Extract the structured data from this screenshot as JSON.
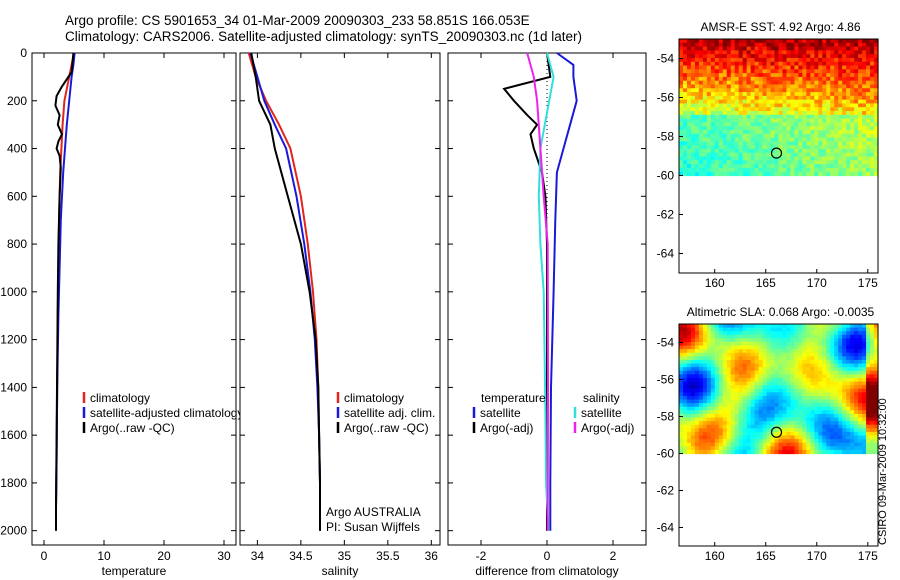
{
  "header": {
    "title_line1": "Argo profile: CS 5901653_34 01-Mar-2009 20090303_233 58.851S 166.053E",
    "title_line2": "Climatology: CARS2006. Satellite-adjusted climatology: synTS_20090303.nc (1d later)"
  },
  "signature": "CSIRO 09-Mar-2009 10:32:00",
  "colors": {
    "climatology": "#e0261c",
    "satellite": "#1a1ad6",
    "argo": "#000000",
    "salinity_satellite": "#33dddd",
    "salinity_argo": "#ee22ee"
  },
  "chart_data": [
    {
      "id": "temperature",
      "type": "line",
      "xlabel": "temperature",
      "ylabel": "",
      "xlim": [
        -2,
        32
      ],
      "ylim": [
        2060,
        0
      ],
      "xticks": [
        0,
        10,
        20,
        30
      ],
      "yticks": [
        0,
        200,
        400,
        600,
        800,
        1000,
        1200,
        1400,
        1600,
        1800,
        2000
      ],
      "legend": [
        "climatology",
        "satellite-adjusted climatology",
        "Argo(..raw -QC)"
      ],
      "series": [
        {
          "name": "climatology",
          "color": "#e0261c",
          "x": [
            5.0,
            4.6,
            4.2,
            3.4,
            3.1,
            2.9,
            2.7,
            2.5,
            2.4,
            2.3,
            2.2,
            2.1,
            2.0,
            2.0
          ],
          "y": [
            0,
            50,
            100,
            200,
            300,
            400,
            500,
            700,
            900,
            1100,
            1400,
            1700,
            1900,
            2000
          ]
        },
        {
          "name": "satellite-adjusted climatology",
          "color": "#1a1ad6",
          "x": [
            5.1,
            4.9,
            4.6,
            4.2,
            3.8,
            3.5,
            3.2,
            2.8,
            2.6,
            2.4,
            2.2,
            2.1,
            2.0,
            2.0
          ],
          "y": [
            0,
            50,
            100,
            200,
            300,
            400,
            500,
            700,
            900,
            1100,
            1400,
            1700,
            1900,
            2000
          ]
        },
        {
          "name": "Argo(..raw -QC)",
          "color": "#000000",
          "x": [
            4.9,
            4.6,
            3.0,
            2.1,
            1.9,
            2.6,
            2.3,
            3.0,
            2.4,
            2.1,
            2.6,
            2.8,
            2.6,
            2.4,
            2.3,
            2.2,
            2.1,
            2.0,
            2.0
          ],
          "y": [
            0,
            80,
            140,
            180,
            220,
            260,
            300,
            340,
            370,
            400,
            430,
            480,
            600,
            800,
            1000,
            1300,
            1600,
            1900,
            2000
          ]
        }
      ]
    },
    {
      "id": "salinity",
      "type": "line",
      "xlabel": "salinity",
      "ylabel": "",
      "xlim": [
        33.8,
        36.1
      ],
      "ylim": [
        2060,
        0
      ],
      "xticks": [
        34,
        34.5,
        35,
        35.5,
        36
      ],
      "xtick_labels": [
        "34",
        "34.5",
        "35",
        "35.5",
        "36"
      ],
      "yticks": [
        0,
        200,
        400,
        600,
        800,
        1000,
        1200,
        1400,
        1600,
        1800,
        2000
      ],
      "legend": [
        "climatology",
        "satellite adj. clim.",
        "Argo(..raw -QC)"
      ],
      "annotation": [
        "Argo AUSTRALIA",
        "PI: Susan Wijffels"
      ],
      "series": [
        {
          "name": "climatology",
          "color": "#e0261c",
          "x": [
            33.9,
            33.98,
            34.1,
            34.25,
            34.38,
            34.5,
            34.58,
            34.64,
            34.68,
            34.7,
            34.71,
            34.72,
            34.72
          ],
          "y": [
            0,
            100,
            200,
            300,
            400,
            600,
            800,
            1000,
            1200,
            1400,
            1600,
            1800,
            2000
          ]
        },
        {
          "name": "satellite adj. clim.",
          "color": "#1a1ad6",
          "x": [
            33.92,
            34.0,
            34.08,
            34.2,
            34.33,
            34.45,
            34.54,
            34.61,
            34.66,
            34.69,
            34.71,
            34.72,
            34.72
          ],
          "y": [
            0,
            100,
            200,
            300,
            400,
            600,
            800,
            1000,
            1200,
            1400,
            1600,
            1800,
            2000
          ]
        },
        {
          "name": "Argo(..raw -QC)",
          "color": "#000000",
          "x": [
            33.93,
            33.98,
            34.02,
            34.15,
            34.2,
            34.35,
            34.5,
            34.6,
            34.67,
            34.7,
            34.71,
            34.72,
            34.72
          ],
          "y": [
            0,
            100,
            200,
            300,
            400,
            600,
            800,
            1000,
            1200,
            1400,
            1600,
            1800,
            2000
          ]
        }
      ]
    },
    {
      "id": "difference",
      "type": "line",
      "xlabel": "difference from climatology",
      "ylabel": "",
      "xlim": [
        -3,
        3
      ],
      "ylim": [
        2060,
        0
      ],
      "xticks": [
        -2,
        0,
        2
      ],
      "yticks": [
        0,
        200,
        400,
        600,
        800,
        1000,
        1200,
        1400,
        1600,
        1800,
        2000
      ],
      "legend_titles": [
        "temperature",
        "salinity"
      ],
      "legend_temperature": [
        "satellite",
        "Argo(-adj)"
      ],
      "legend_salinity": [
        "satellite",
        "Argo(-adj)"
      ],
      "series": [
        {
          "name": "temperature satellite",
          "color": "#1a1ad6",
          "x": [
            0.3,
            0.8,
            0.8,
            0.9,
            0.7,
            0.5,
            0.3,
            0.25,
            0.2,
            0.12,
            0.1,
            0.1
          ],
          "y": [
            0,
            50,
            100,
            200,
            300,
            400,
            500,
            700,
            1000,
            1400,
            1800,
            2000
          ]
        },
        {
          "name": "temperature Argo(-adj)",
          "color": "#000000",
          "x": [
            0,
            0.1,
            -1.3,
            -1.0,
            -0.6,
            -0.3,
            -0.5,
            -0.4,
            -0.15,
            -0.05,
            0,
            0,
            0,
            0
          ],
          "y": [
            0,
            100,
            150,
            200,
            260,
            300,
            340,
            400,
            500,
            600,
            800,
            1200,
            1700,
            2000
          ]
        },
        {
          "name": "salinity satellite",
          "color": "#33dddd",
          "x": [
            0.0,
            0.2,
            0.0,
            -0.2,
            -0.25,
            -0.2,
            -0.1,
            -0.08,
            -0.05,
            -0.03,
            0.05
          ],
          "y": [
            0,
            100,
            250,
            400,
            600,
            800,
            1000,
            1200,
            1500,
            1800,
            2000
          ]
        },
        {
          "name": "salinity Argo(-adj)",
          "color": "#ee22ee",
          "x": [
            -0.6,
            -0.4,
            -0.3,
            -0.2,
            -0.1,
            0.02,
            0.03,
            0.02
          ],
          "y": [
            0,
            100,
            200,
            400,
            600,
            800,
            1400,
            2000
          ]
        }
      ]
    },
    {
      "id": "sst-map",
      "type": "heatmap",
      "title_label": "AMSR-E SST:",
      "title_value_sat": "4.92",
      "title_argo_label": "Argo:",
      "title_value_argo": "4.86",
      "xlim": [
        156.5,
        176
      ],
      "ylim": [
        -65,
        -53
      ],
      "xticks": [
        160,
        165,
        170,
        175
      ],
      "yticks": [
        -54,
        -56,
        -58,
        -60,
        -62,
        -64
      ],
      "data_lat_range": [
        -60,
        -53
      ],
      "float_position": [
        166.053,
        -58.851
      ]
    },
    {
      "id": "sla-map",
      "type": "heatmap",
      "title_label": "Altimetric SLA:",
      "title_value_sat": "0.068",
      "title_argo_label": "Argo:",
      "title_value_argo": "-0.0035",
      "xlim": [
        156.5,
        176
      ],
      "ylim": [
        -65,
        -53
      ],
      "xticks": [
        160,
        165,
        170,
        175
      ],
      "yticks": [
        -54,
        -56,
        -58,
        -60,
        -62,
        -64
      ],
      "data_lat_range": [
        -60,
        -53
      ],
      "float_position": [
        166.053,
        -58.851
      ]
    }
  ]
}
